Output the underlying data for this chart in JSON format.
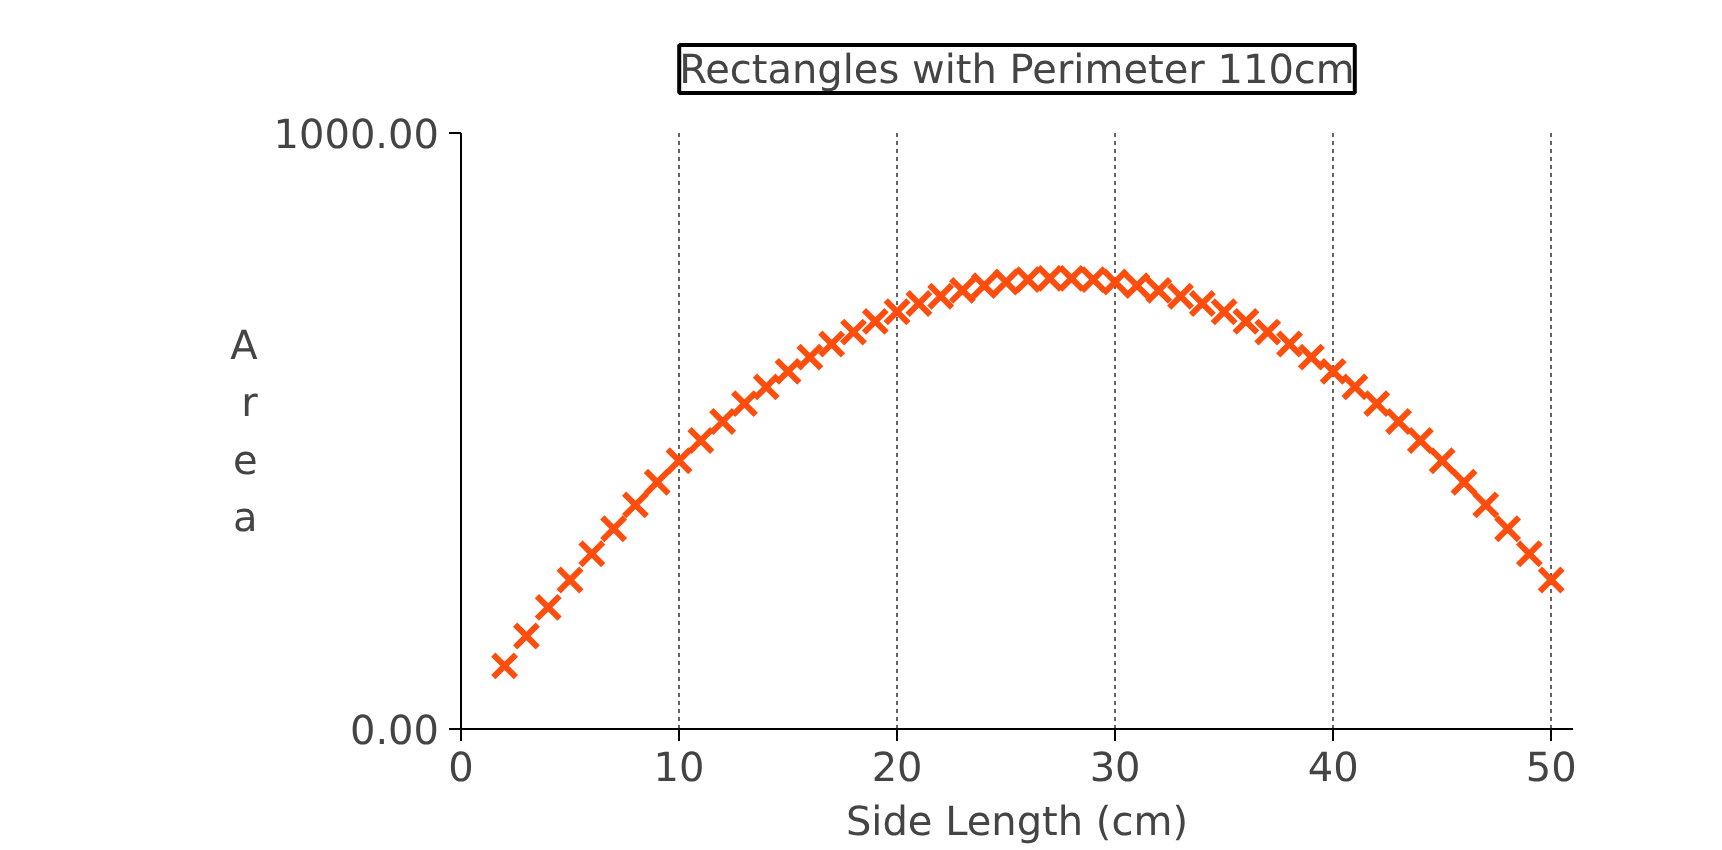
{
  "chart_data": {
    "type": "scatter",
    "title": "Rectangles with Perimeter 110cm",
    "xlabel": "Side Length (cm)",
    "ylabel": "Area",
    "x": [
      2,
      3,
      4,
      5,
      6,
      7,
      8,
      9,
      10,
      11,
      12,
      13,
      14,
      15,
      16,
      17,
      18,
      19,
      20,
      21,
      22,
      23,
      24,
      25,
      26,
      27,
      28,
      29,
      30,
      31,
      32,
      33,
      34,
      35,
      36,
      37,
      38,
      39,
      40,
      41,
      42,
      43,
      44,
      45,
      46,
      47,
      48,
      49,
      50
    ],
    "series": [
      {
        "color": "#ff4d0d",
        "values": [
          106,
          156,
          204,
          250,
          294,
          336,
          376,
          414,
          450,
          484,
          516,
          546,
          574,
          600,
          624,
          646,
          666,
          684,
          700,
          714,
          726,
          736,
          744,
          750,
          754,
          756,
          756,
          754,
          750,
          744,
          736,
          726,
          714,
          700,
          684,
          666,
          646,
          624,
          600,
          574,
          546,
          516,
          484,
          450,
          414,
          376,
          336,
          294,
          250
        ]
      }
    ],
    "xlim": [
      0,
      51
    ],
    "xticks": [
      0,
      10,
      20,
      30,
      40,
      50
    ],
    "ylim": [
      0,
      1000
    ],
    "yticks": [
      {
        "value": 0,
        "label": "0.00"
      },
      {
        "value": 1000,
        "label": "1000.00"
      }
    ],
    "grid": "x",
    "marker": "cross"
  }
}
